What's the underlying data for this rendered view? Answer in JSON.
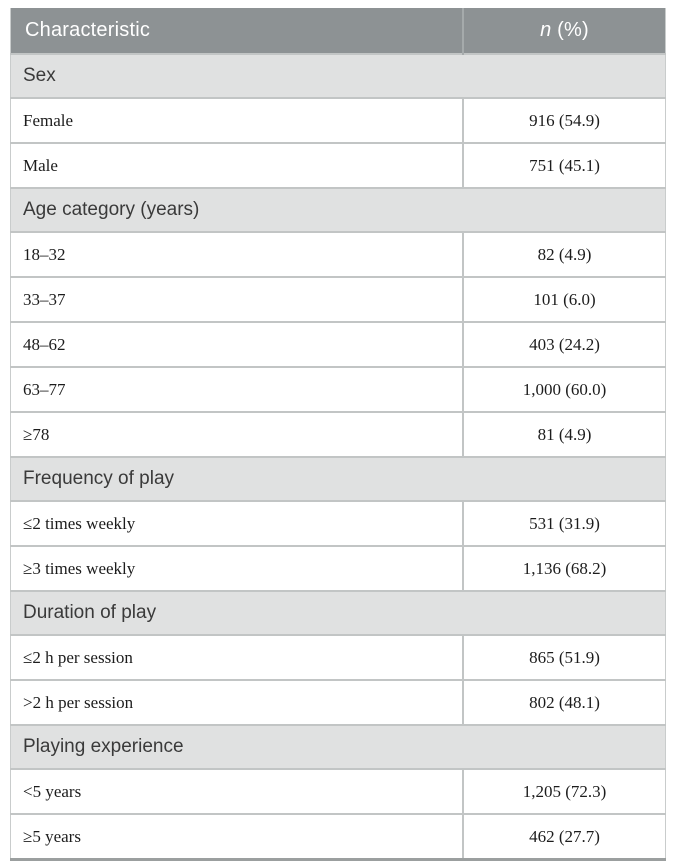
{
  "table": {
    "header": {
      "characteristic": "Characteristic",
      "n_label": "n",
      "pct_label": " (%)"
    },
    "colors": {
      "header_bg": "#8d9294",
      "header_text": "#ffffff",
      "section_bg": "#e0e1e1",
      "row_bg": "#ffffff",
      "grid_border": "#c2c5c5",
      "bottom_border": "#9b9f9f"
    },
    "sections": [
      {
        "title": "Sex",
        "rows": [
          {
            "label": "Female",
            "value": "916 (54.9)"
          },
          {
            "label": "Male",
            "value": "751 (45.1)"
          }
        ]
      },
      {
        "title": "Age category (years)",
        "rows": [
          {
            "label": "18–32",
            "value": "82 (4.9)"
          },
          {
            "label": "33–37",
            "value": "101 (6.0)"
          },
          {
            "label": "48–62",
            "value": "403 (24.2)"
          },
          {
            "label": "63–77",
            "value": "1,000 (60.0)"
          },
          {
            "label": "≥78",
            "value": "81 (4.9)"
          }
        ]
      },
      {
        "title": "Frequency of play",
        "rows": [
          {
            "label": "≤2 times weekly",
            "value": "531 (31.9)"
          },
          {
            "label": "≥3 times weekly",
            "value": "1,136 (68.2)"
          }
        ]
      },
      {
        "title": "Duration of play",
        "rows": [
          {
            "label": "≤2 h per session",
            "value": "865 (51.9)"
          },
          {
            "label": ">2 h per session",
            "value": "802 (48.1)"
          }
        ]
      },
      {
        "title": "Playing experience",
        "rows": [
          {
            "label": "<5 years",
            "value": "1,205 (72.3)"
          },
          {
            "label": "≥5 years",
            "value": "462 (27.7)"
          }
        ]
      }
    ]
  }
}
